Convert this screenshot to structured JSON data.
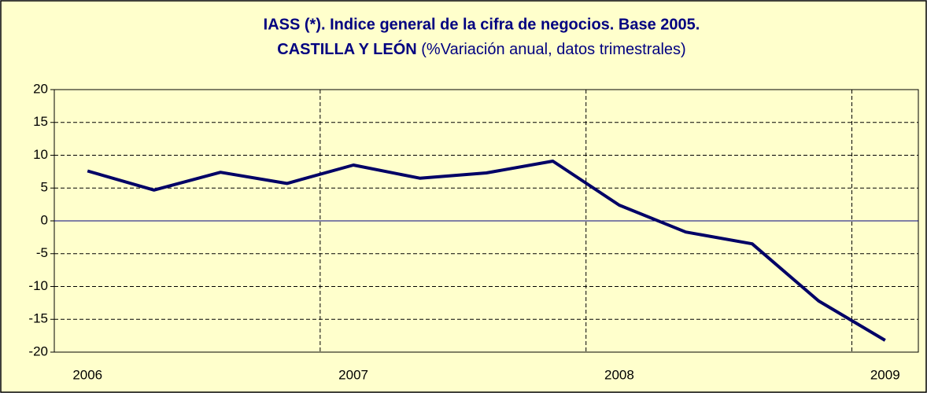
{
  "chart_data": {
    "type": "line",
    "title": "IASS (*). Indice general de la cifra de negocios. Base 2005.",
    "subtitle": "CASTILLA Y LEÓN",
    "subtitle_note": "(%Variación anual, datos trimestrales)",
    "categories": [
      "2006",
      null,
      null,
      null,
      "2007",
      null,
      null,
      null,
      "2008",
      null,
      null,
      null,
      "2009"
    ],
    "series": [
      {
        "name": "IASS",
        "color": "#000066",
        "values": [
          7.6,
          4.7,
          7.4,
          5.7,
          8.5,
          6.5,
          7.3,
          9.1,
          2.4,
          -1.7,
          -3.5,
          -12.2,
          -18.2
        ]
      }
    ],
    "ylim": [
      -20,
      20
    ],
    "yticks": [
      -20,
      -15,
      -10,
      -5,
      0,
      5,
      10,
      15,
      20
    ],
    "grid": true
  }
}
